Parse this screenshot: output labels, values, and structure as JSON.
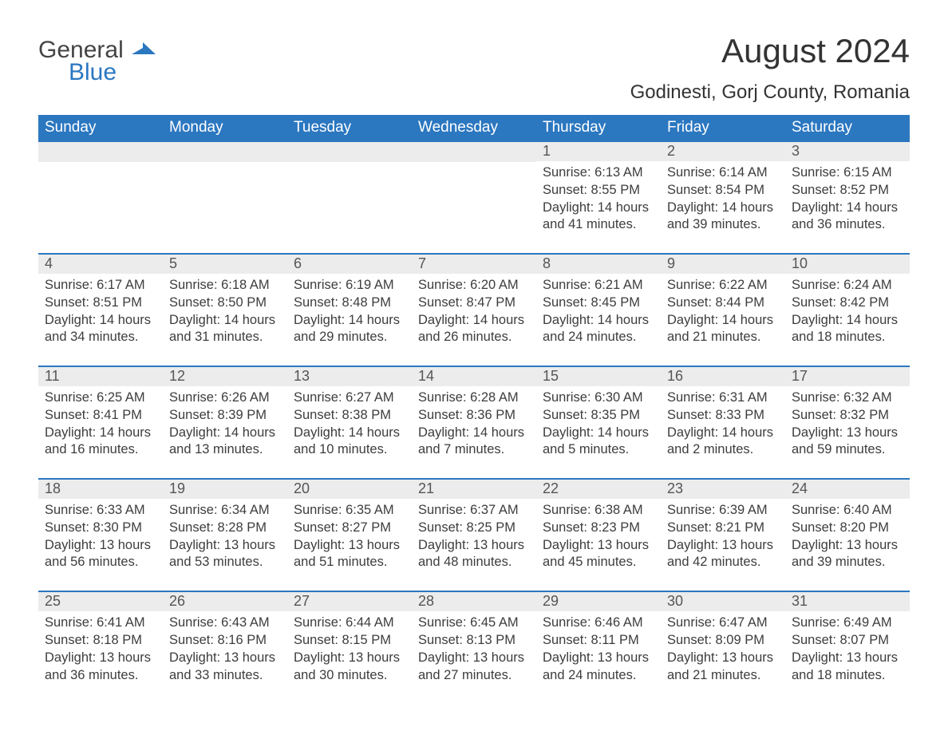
{
  "brand": {
    "name_a": "General",
    "name_b": "Blue",
    "logo_color": "#2b77c0",
    "text_color": "#444444"
  },
  "title": "August 2024",
  "location": "Godinesti, Gorj County, Romania",
  "colors": {
    "header_bg": "#2b77c0",
    "header_text": "#ffffff",
    "daynum_bg": "#ececec",
    "rule": "#2b77c0",
    "body_text": "#3d3d3d",
    "page_bg": "#ffffff"
  },
  "dow": [
    "Sunday",
    "Monday",
    "Tuesday",
    "Wednesday",
    "Thursday",
    "Friday",
    "Saturday"
  ],
  "labels": {
    "sunrise": "Sunrise:",
    "sunset": "Sunset:",
    "daylight": "Daylight:"
  },
  "weeks": [
    [
      null,
      null,
      null,
      null,
      {
        "n": "1",
        "sunrise": "6:13 AM",
        "sunset": "8:55 PM",
        "daylight": "14 hours and 41 minutes."
      },
      {
        "n": "2",
        "sunrise": "6:14 AM",
        "sunset": "8:54 PM",
        "daylight": "14 hours and 39 minutes."
      },
      {
        "n": "3",
        "sunrise": "6:15 AM",
        "sunset": "8:52 PM",
        "daylight": "14 hours and 36 minutes."
      }
    ],
    [
      {
        "n": "4",
        "sunrise": "6:17 AM",
        "sunset": "8:51 PM",
        "daylight": "14 hours and 34 minutes."
      },
      {
        "n": "5",
        "sunrise": "6:18 AM",
        "sunset": "8:50 PM",
        "daylight": "14 hours and 31 minutes."
      },
      {
        "n": "6",
        "sunrise": "6:19 AM",
        "sunset": "8:48 PM",
        "daylight": "14 hours and 29 minutes."
      },
      {
        "n": "7",
        "sunrise": "6:20 AM",
        "sunset": "8:47 PM",
        "daylight": "14 hours and 26 minutes."
      },
      {
        "n": "8",
        "sunrise": "6:21 AM",
        "sunset": "8:45 PM",
        "daylight": "14 hours and 24 minutes."
      },
      {
        "n": "9",
        "sunrise": "6:22 AM",
        "sunset": "8:44 PM",
        "daylight": "14 hours and 21 minutes."
      },
      {
        "n": "10",
        "sunrise": "6:24 AM",
        "sunset": "8:42 PM",
        "daylight": "14 hours and 18 minutes."
      }
    ],
    [
      {
        "n": "11",
        "sunrise": "6:25 AM",
        "sunset": "8:41 PM",
        "daylight": "14 hours and 16 minutes."
      },
      {
        "n": "12",
        "sunrise": "6:26 AM",
        "sunset": "8:39 PM",
        "daylight": "14 hours and 13 minutes."
      },
      {
        "n": "13",
        "sunrise": "6:27 AM",
        "sunset": "8:38 PM",
        "daylight": "14 hours and 10 minutes."
      },
      {
        "n": "14",
        "sunrise": "6:28 AM",
        "sunset": "8:36 PM",
        "daylight": "14 hours and 7 minutes."
      },
      {
        "n": "15",
        "sunrise": "6:30 AM",
        "sunset": "8:35 PM",
        "daylight": "14 hours and 5 minutes."
      },
      {
        "n": "16",
        "sunrise": "6:31 AM",
        "sunset": "8:33 PM",
        "daylight": "14 hours and 2 minutes."
      },
      {
        "n": "17",
        "sunrise": "6:32 AM",
        "sunset": "8:32 PM",
        "daylight": "13 hours and 59 minutes."
      }
    ],
    [
      {
        "n": "18",
        "sunrise": "6:33 AM",
        "sunset": "8:30 PM",
        "daylight": "13 hours and 56 minutes."
      },
      {
        "n": "19",
        "sunrise": "6:34 AM",
        "sunset": "8:28 PM",
        "daylight": "13 hours and 53 minutes."
      },
      {
        "n": "20",
        "sunrise": "6:35 AM",
        "sunset": "8:27 PM",
        "daylight": "13 hours and 51 minutes."
      },
      {
        "n": "21",
        "sunrise": "6:37 AM",
        "sunset": "8:25 PM",
        "daylight": "13 hours and 48 minutes."
      },
      {
        "n": "22",
        "sunrise": "6:38 AM",
        "sunset": "8:23 PM",
        "daylight": "13 hours and 45 minutes."
      },
      {
        "n": "23",
        "sunrise": "6:39 AM",
        "sunset": "8:21 PM",
        "daylight": "13 hours and 42 minutes."
      },
      {
        "n": "24",
        "sunrise": "6:40 AM",
        "sunset": "8:20 PM",
        "daylight": "13 hours and 39 minutes."
      }
    ],
    [
      {
        "n": "25",
        "sunrise": "6:41 AM",
        "sunset": "8:18 PM",
        "daylight": "13 hours and 36 minutes."
      },
      {
        "n": "26",
        "sunrise": "6:43 AM",
        "sunset": "8:16 PM",
        "daylight": "13 hours and 33 minutes."
      },
      {
        "n": "27",
        "sunrise": "6:44 AM",
        "sunset": "8:15 PM",
        "daylight": "13 hours and 30 minutes."
      },
      {
        "n": "28",
        "sunrise": "6:45 AM",
        "sunset": "8:13 PM",
        "daylight": "13 hours and 27 minutes."
      },
      {
        "n": "29",
        "sunrise": "6:46 AM",
        "sunset": "8:11 PM",
        "daylight": "13 hours and 24 minutes."
      },
      {
        "n": "30",
        "sunrise": "6:47 AM",
        "sunset": "8:09 PM",
        "daylight": "13 hours and 21 minutes."
      },
      {
        "n": "31",
        "sunrise": "6:49 AM",
        "sunset": "8:07 PM",
        "daylight": "13 hours and 18 minutes."
      }
    ]
  ]
}
